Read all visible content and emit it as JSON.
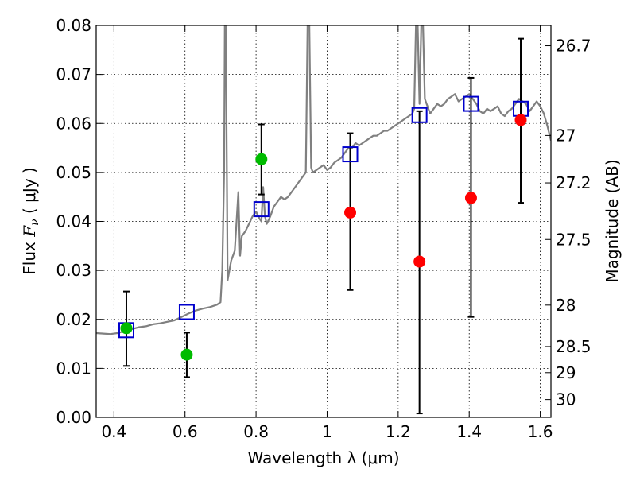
{
  "chart_data": {
    "type": "scatter",
    "xlabel": "Wavelength  λ (μm)",
    "ylabel": "Flux  F_ν  ( μJy )",
    "ylabel_parts": {
      "prefix": "Flux  ",
      "var": "F",
      "sub": "ν",
      "suffix": "  ( μJy )"
    },
    "y2label": "Magnitude (AB)",
    "xlim": [
      0.35,
      1.63
    ],
    "ylim": [
      0.0,
      0.08
    ],
    "xticks": [
      0.4,
      0.6,
      0.8,
      1.0,
      1.2,
      1.4,
      1.6
    ],
    "xtick_labels": [
      "0.4",
      "0.6",
      "0.8",
      "1",
      "1.2",
      "1.4",
      "1.6"
    ],
    "yticks": [
      0.0,
      0.01,
      0.02,
      0.03,
      0.04,
      0.05,
      0.06,
      0.07,
      0.08
    ],
    "ytick_labels": [
      "0.00",
      "0.01",
      "0.02",
      "0.03",
      "0.04",
      "0.05",
      "0.06",
      "0.07",
      "0.08"
    ],
    "magnitude_ticks": [
      26.7,
      27,
      27.2,
      27.5,
      28,
      28.5,
      29,
      30
    ],
    "magnitude_tick_labels": [
      "26.7",
      "27",
      "27.2",
      "27.5",
      "28",
      "28.5",
      "29",
      "30"
    ],
    "grid": true,
    "colors": {
      "template": "#808080",
      "detection": "#00bb00",
      "nondetection": "#ff0000",
      "model": "#0000cc",
      "errorbar": "#000000"
    },
    "series": [
      {
        "kind": "template",
        "x": [
          0.35,
          0.37,
          0.39,
          0.41,
          0.43,
          0.45,
          0.47,
          0.49,
          0.51,
          0.53,
          0.55,
          0.57,
          0.59,
          0.61,
          0.63,
          0.65,
          0.67,
          0.69,
          0.7,
          0.705,
          0.71,
          0.712,
          0.715,
          0.72,
          0.73,
          0.74,
          0.75,
          0.755,
          0.76,
          0.77,
          0.78,
          0.79,
          0.8,
          0.81,
          0.815,
          0.82,
          0.825,
          0.83,
          0.84,
          0.85,
          0.86,
          0.87,
          0.88,
          0.89,
          0.9,
          0.91,
          0.92,
          0.93,
          0.94,
          0.945,
          0.95,
          0.955,
          0.96,
          0.97,
          0.98,
          0.99,
          1.0,
          1.01,
          1.02,
          1.03,
          1.04,
          1.05,
          1.06,
          1.07,
          1.08,
          1.09,
          1.1,
          1.11,
          1.12,
          1.13,
          1.14,
          1.15,
          1.16,
          1.17,
          1.18,
          1.19,
          1.2,
          1.21,
          1.22,
          1.23,
          1.24,
          1.245,
          1.25,
          1.255,
          1.26,
          1.265,
          1.27,
          1.275,
          1.28,
          1.29,
          1.3,
          1.31,
          1.32,
          1.33,
          1.34,
          1.35,
          1.36,
          1.37,
          1.38,
          1.39,
          1.4,
          1.41,
          1.42,
          1.43,
          1.44,
          1.45,
          1.46,
          1.47,
          1.48,
          1.49,
          1.5,
          1.51,
          1.52,
          1.53,
          1.54,
          1.55,
          1.56,
          1.57,
          1.58,
          1.59,
          1.6,
          1.61,
          1.62,
          1.63
        ],
        "y": [
          0.0172,
          0.0171,
          0.017,
          0.0172,
          0.0176,
          0.018,
          0.0184,
          0.0186,
          0.019,
          0.0192,
          0.0195,
          0.0198,
          0.0205,
          0.0212,
          0.0218,
          0.0222,
          0.0225,
          0.023,
          0.0235,
          0.03,
          0.05,
          0.08,
          0.08,
          0.028,
          0.032,
          0.034,
          0.046,
          0.033,
          0.037,
          0.038,
          0.0395,
          0.041,
          0.042,
          0.0405,
          0.04,
          0.047,
          0.041,
          0.0395,
          0.041,
          0.043,
          0.044,
          0.045,
          0.0445,
          0.045,
          0.046,
          0.047,
          0.048,
          0.049,
          0.05,
          0.08,
          0.08,
          0.051,
          0.05,
          0.0505,
          0.051,
          0.0515,
          0.0505,
          0.051,
          0.052,
          0.0525,
          0.053,
          0.054,
          0.055,
          0.055,
          0.056,
          0.0555,
          0.056,
          0.0565,
          0.057,
          0.0575,
          0.0575,
          0.058,
          0.0585,
          0.0585,
          0.059,
          0.0595,
          0.06,
          0.0605,
          0.061,
          0.0615,
          0.062,
          0.063,
          0.08,
          0.08,
          0.064,
          0.08,
          0.08,
          0.065,
          0.064,
          0.062,
          0.063,
          0.064,
          0.0635,
          0.064,
          0.065,
          0.0655,
          0.066,
          0.0645,
          0.065,
          0.0655,
          0.066,
          0.065,
          0.064,
          0.0625,
          0.062,
          0.063,
          0.0625,
          0.063,
          0.0635,
          0.062,
          0.0615,
          0.0625,
          0.063,
          0.064,
          0.065,
          0.0645,
          0.064,
          0.0625,
          0.0635,
          0.0645,
          0.0635,
          0.062,
          0.0595,
          0.0565
        ]
      },
      {
        "kind": "model",
        "x": [
          0.435,
          0.605,
          0.815,
          1.065,
          1.26,
          1.405,
          1.545
        ],
        "y": [
          0.0178,
          0.0215,
          0.0425,
          0.0537,
          0.0617,
          0.064,
          0.063
        ]
      },
      {
        "kind": "detection",
        "x": [
          0.435,
          0.605,
          0.815
        ],
        "y": [
          0.0182,
          0.0128,
          0.0527
        ],
        "yerr_low": [
          0.0105,
          0.0082,
          0.0455
        ],
        "yerr_high": [
          0.0257,
          0.0173,
          0.0598
        ]
      },
      {
        "kind": "nondetection",
        "x": [
          1.065,
          1.26,
          1.405,
          1.545
        ],
        "y": [
          0.0418,
          0.0318,
          0.0448,
          0.0607
        ],
        "yerr_low": [
          0.026,
          0.0008,
          0.0205,
          0.0438
        ],
        "yerr_high": [
          0.058,
          0.0625,
          0.0693,
          0.0773
        ]
      }
    ]
  }
}
